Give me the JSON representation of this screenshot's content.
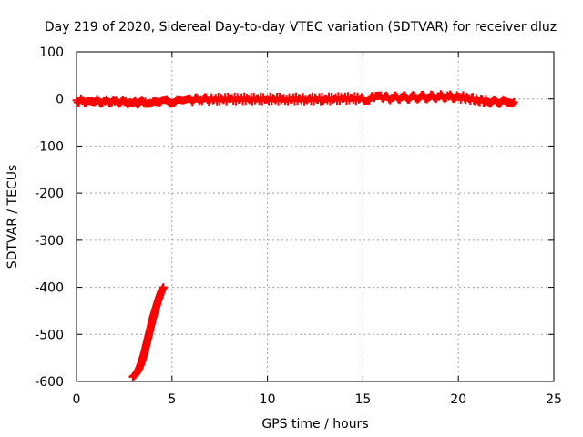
{
  "chart_data": {
    "type": "scatter",
    "title": "Day 219 of 2020, Sidereal Day-to-day VTEC variation (SDTVAR) for receiver dluz",
    "xlabel": "GPS time / hours",
    "ylabel": "SDTVAR / TECUs",
    "xlim": [
      0,
      25
    ],
    "ylim": [
      -600,
      100
    ],
    "xticks": [
      0,
      5,
      10,
      15,
      20,
      25
    ],
    "yticks": [
      100,
      0,
      -100,
      -200,
      -300,
      -400,
      -500,
      -600
    ],
    "grid": true,
    "marker": "plus",
    "series_color": "#ff0000",
    "series": [
      {
        "points": [
          [
            0.0,
            -3
          ],
          [
            0.3,
            -4
          ],
          [
            0.6,
            -4
          ],
          [
            1.0,
            -5
          ],
          [
            1.5,
            -5
          ],
          [
            2.0,
            -5
          ],
          [
            2.5,
            -6
          ],
          [
            2.8,
            -7
          ],
          [
            3.0,
            -7
          ],
          [
            3.3,
            -7
          ],
          [
            3.6,
            -6
          ],
          [
            4.0,
            -6
          ],
          [
            4.4,
            -6
          ],
          [
            4.8,
            -5
          ],
          [
            5.2,
            -4
          ],
          [
            5.6,
            -3
          ],
          [
            6.0,
            -2
          ],
          [
            6.5,
            -1
          ],
          [
            7.0,
            -1
          ],
          [
            8.0,
            0
          ],
          [
            9.0,
            0
          ],
          [
            10.0,
            0
          ],
          [
            11.0,
            0
          ],
          [
            12.0,
            0
          ],
          [
            13.0,
            0
          ],
          [
            14.0,
            1
          ],
          [
            15.0,
            1
          ],
          [
            15.4,
            2
          ],
          [
            15.6,
            2
          ],
          [
            16.0,
            2
          ],
          [
            16.5,
            2
          ],
          [
            17.0,
            3
          ],
          [
            17.5,
            3
          ],
          [
            18.0,
            4
          ],
          [
            18.5,
            4
          ],
          [
            19.0,
            5
          ],
          [
            19.5,
            5
          ],
          [
            20.0,
            4
          ],
          [
            20.5,
            2
          ],
          [
            21.0,
            -2
          ],
          [
            21.5,
            -5
          ],
          [
            22.0,
            -6
          ],
          [
            22.5,
            -6
          ],
          [
            22.9,
            -7
          ]
        ]
      },
      {
        "points": [
          [
            2.95,
            -590
          ],
          [
            3.1,
            -585
          ],
          [
            3.25,
            -575
          ],
          [
            3.4,
            -560
          ],
          [
            3.55,
            -540
          ],
          [
            3.7,
            -515
          ],
          [
            3.85,
            -490
          ],
          [
            4.0,
            -465
          ],
          [
            4.15,
            -445
          ],
          [
            4.3,
            -425
          ],
          [
            4.45,
            -408
          ],
          [
            4.55,
            -400
          ]
        ]
      }
    ]
  }
}
